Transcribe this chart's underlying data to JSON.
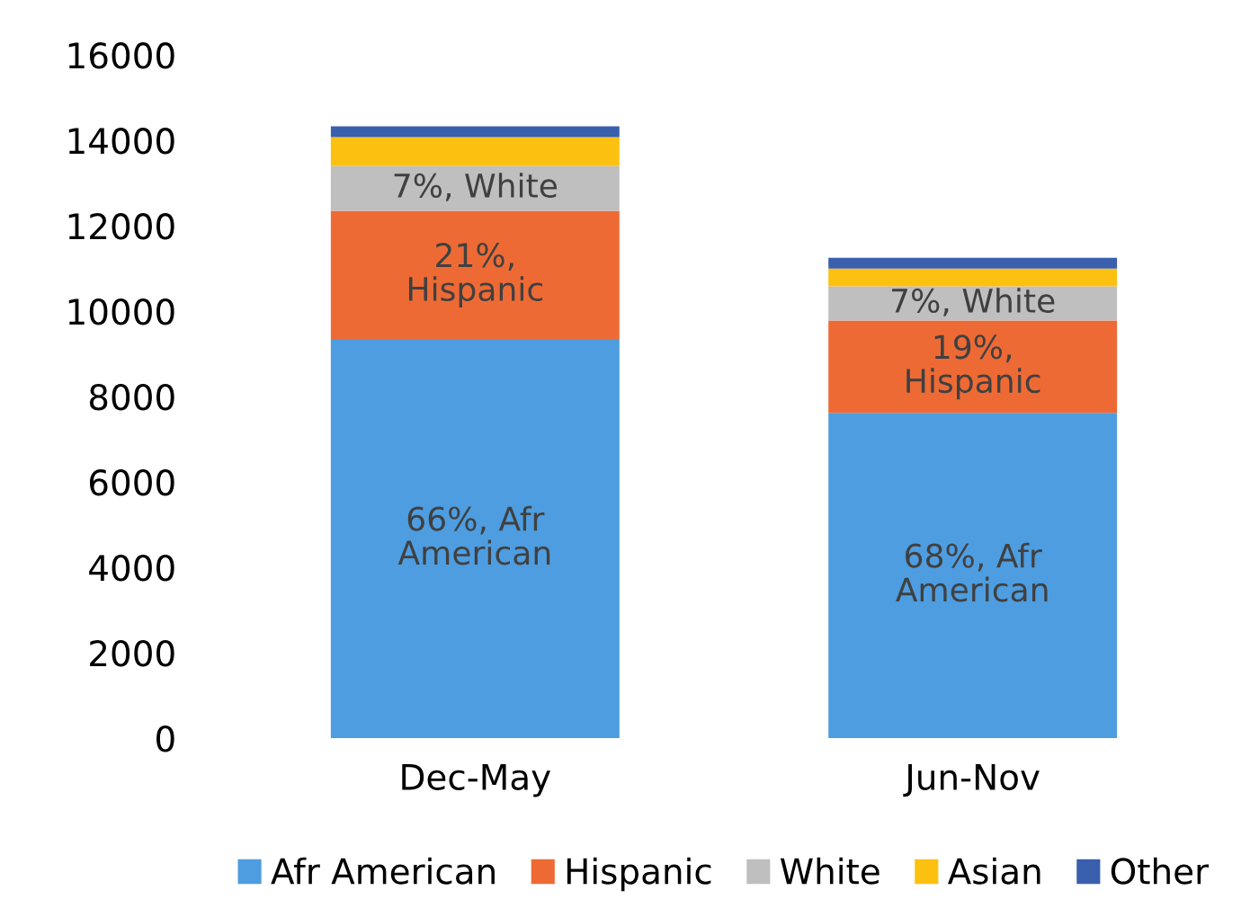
{
  "chart_data": {
    "type": "bar",
    "stacked": true,
    "categories": [
      "Dec-May",
      "Jun-Nov"
    ],
    "series": [
      {
        "name": "Afr American",
        "color": "#4e9de0",
        "values": [
          9350,
          7620
        ]
      },
      {
        "name": "Hispanic",
        "color": "#ee6a35",
        "values": [
          3000,
          2160
        ]
      },
      {
        "name": "White",
        "color": "#bfbfbf",
        "values": [
          1050,
          800
        ]
      },
      {
        "name": "Asian",
        "color": "#fcc010",
        "values": [
          680,
          420
        ]
      },
      {
        "name": "Other",
        "color": "#3a5fad",
        "values": [
          250,
          250
        ]
      }
    ],
    "annotations": [
      "66%, Afr American",
      "21%, Hispanic",
      "7%, White",
      "68%, Afr American",
      "19%, Hispanic",
      "7%, White"
    ],
    "ylim": [
      0,
      16000
    ],
    "yticks": [
      0,
      2000,
      4000,
      6000,
      8000,
      10000,
      12000,
      14000,
      16000
    ],
    "grid": false,
    "legend": "bottom"
  }
}
